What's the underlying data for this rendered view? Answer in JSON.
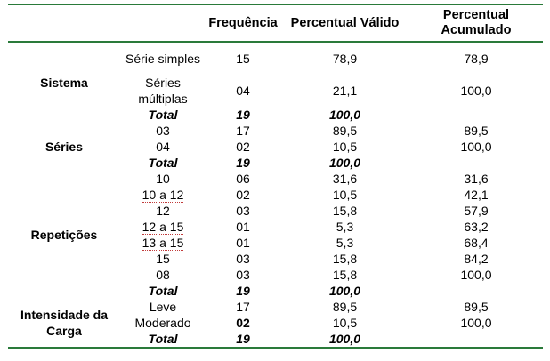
{
  "headers": {
    "c0": "",
    "c1": "",
    "c2": "Frequência",
    "c3": "Percentual Válido",
    "c4": "Percentual Acumulado"
  },
  "groups": [
    {
      "label": "Sistema",
      "rows": [
        {
          "sub": "Série simples",
          "freq": "15",
          "pv": "78,9",
          "pa": "78,9"
        },
        {
          "sub": "Séries múltiplas",
          "freq": "04",
          "pv": "21,1",
          "pa": "100,0"
        }
      ],
      "total": {
        "label": "Total",
        "freq": "19",
        "pv": "100,0"
      }
    },
    {
      "label": "Séries",
      "rows": [
        {
          "sub": "03",
          "freq": "17",
          "pv": "89,5",
          "pa": "89,5"
        },
        {
          "sub": "04",
          "freq": "02",
          "pv": "10,5",
          "pa": "100,0"
        }
      ],
      "total": {
        "label": "Total",
        "freq": "19",
        "pv": "100,0"
      }
    },
    {
      "label": "Repetições",
      "rows": [
        {
          "sub": "10",
          "freq": "06",
          "pv": "31,6",
          "pa": "31,6"
        },
        {
          "sub": "10 a 12",
          "freq": "02",
          "pv": "10,5",
          "pa": "42,1"
        },
        {
          "sub": "12",
          "freq": "03",
          "pv": "15,8",
          "pa": "57,9"
        },
        {
          "sub": "12 a 15",
          "freq": "01",
          "pv": "5,3",
          "pa": "63,2"
        },
        {
          "sub": "13 a 15",
          "freq": "01",
          "pv": "5,3",
          "pa": "68,4"
        },
        {
          "sub": "15",
          "freq": "03",
          "pv": "15,8",
          "pa": "84,2"
        },
        {
          "sub": "08",
          "freq": "03",
          "pv": "15,8",
          "pa": "100,0"
        }
      ],
      "total": {
        "label": "Total",
        "freq": "19",
        "pv": "100,0"
      }
    },
    {
      "label": "Intensidade da Carga",
      "rows": [
        {
          "sub": "Leve",
          "freq": "17",
          "pv": "89,5",
          "pa": "89,5"
        },
        {
          "sub": "Moderado",
          "freq": "02",
          "pv": "10,5",
          "pa": "100,0"
        }
      ],
      "total": {
        "label": "Total",
        "freq": "19",
        "pv": "100,0"
      }
    }
  ]
}
